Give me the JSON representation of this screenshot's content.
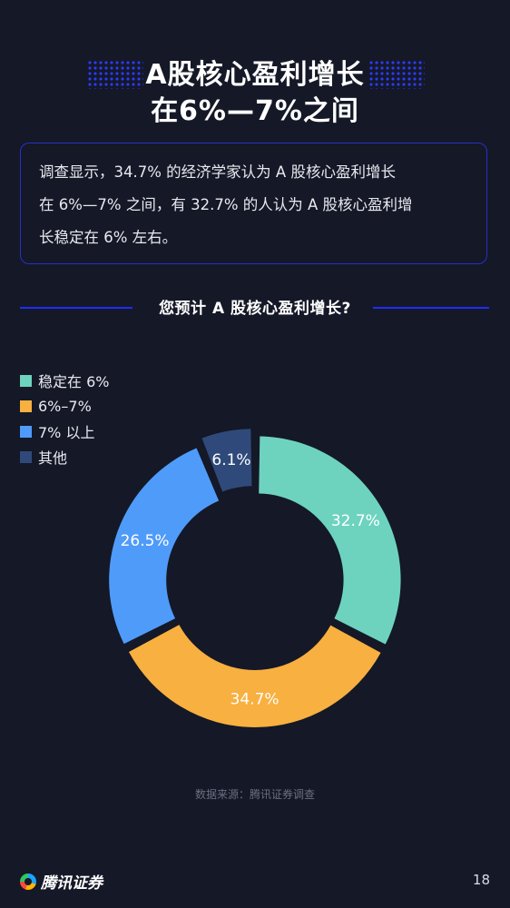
{
  "header": {
    "title_line1": "A股核心盈利增长",
    "title_line2": "在6%—7%之间"
  },
  "summary": {
    "line1": "调查显示，34.7% 的经济学家认为 A 股核心盈利增长",
    "line2": "在 6%—7% 之间，有 32.7% 的人认为 A 股核心盈利增",
    "line3": "长稳定在 6% 左右。"
  },
  "section_title": "您预计 A 股核心盈利增长?",
  "chart_data": {
    "type": "pie",
    "style": "donut",
    "title": "您预计 A 股核心盈利增长?",
    "series": [
      {
        "name": "稳定在 6%",
        "value": 32.7,
        "label": "32.7%",
        "color": "#6dd3bf"
      },
      {
        "name": "6%–7%",
        "value": 34.7,
        "label": "34.7%",
        "color": "#f8b040"
      },
      {
        "name": "7% 以上",
        "value": 26.5,
        "label": "26.5%",
        "color": "#4f9bfa"
      },
      {
        "name": "其他",
        "value": 6.1,
        "label": "6.1%",
        "color": "#2f4a7a"
      }
    ],
    "legend_position": "top-left"
  },
  "source": "数据来源：腾讯证券调查",
  "footer": {
    "brand": "腾讯证券",
    "page_number": "18"
  }
}
